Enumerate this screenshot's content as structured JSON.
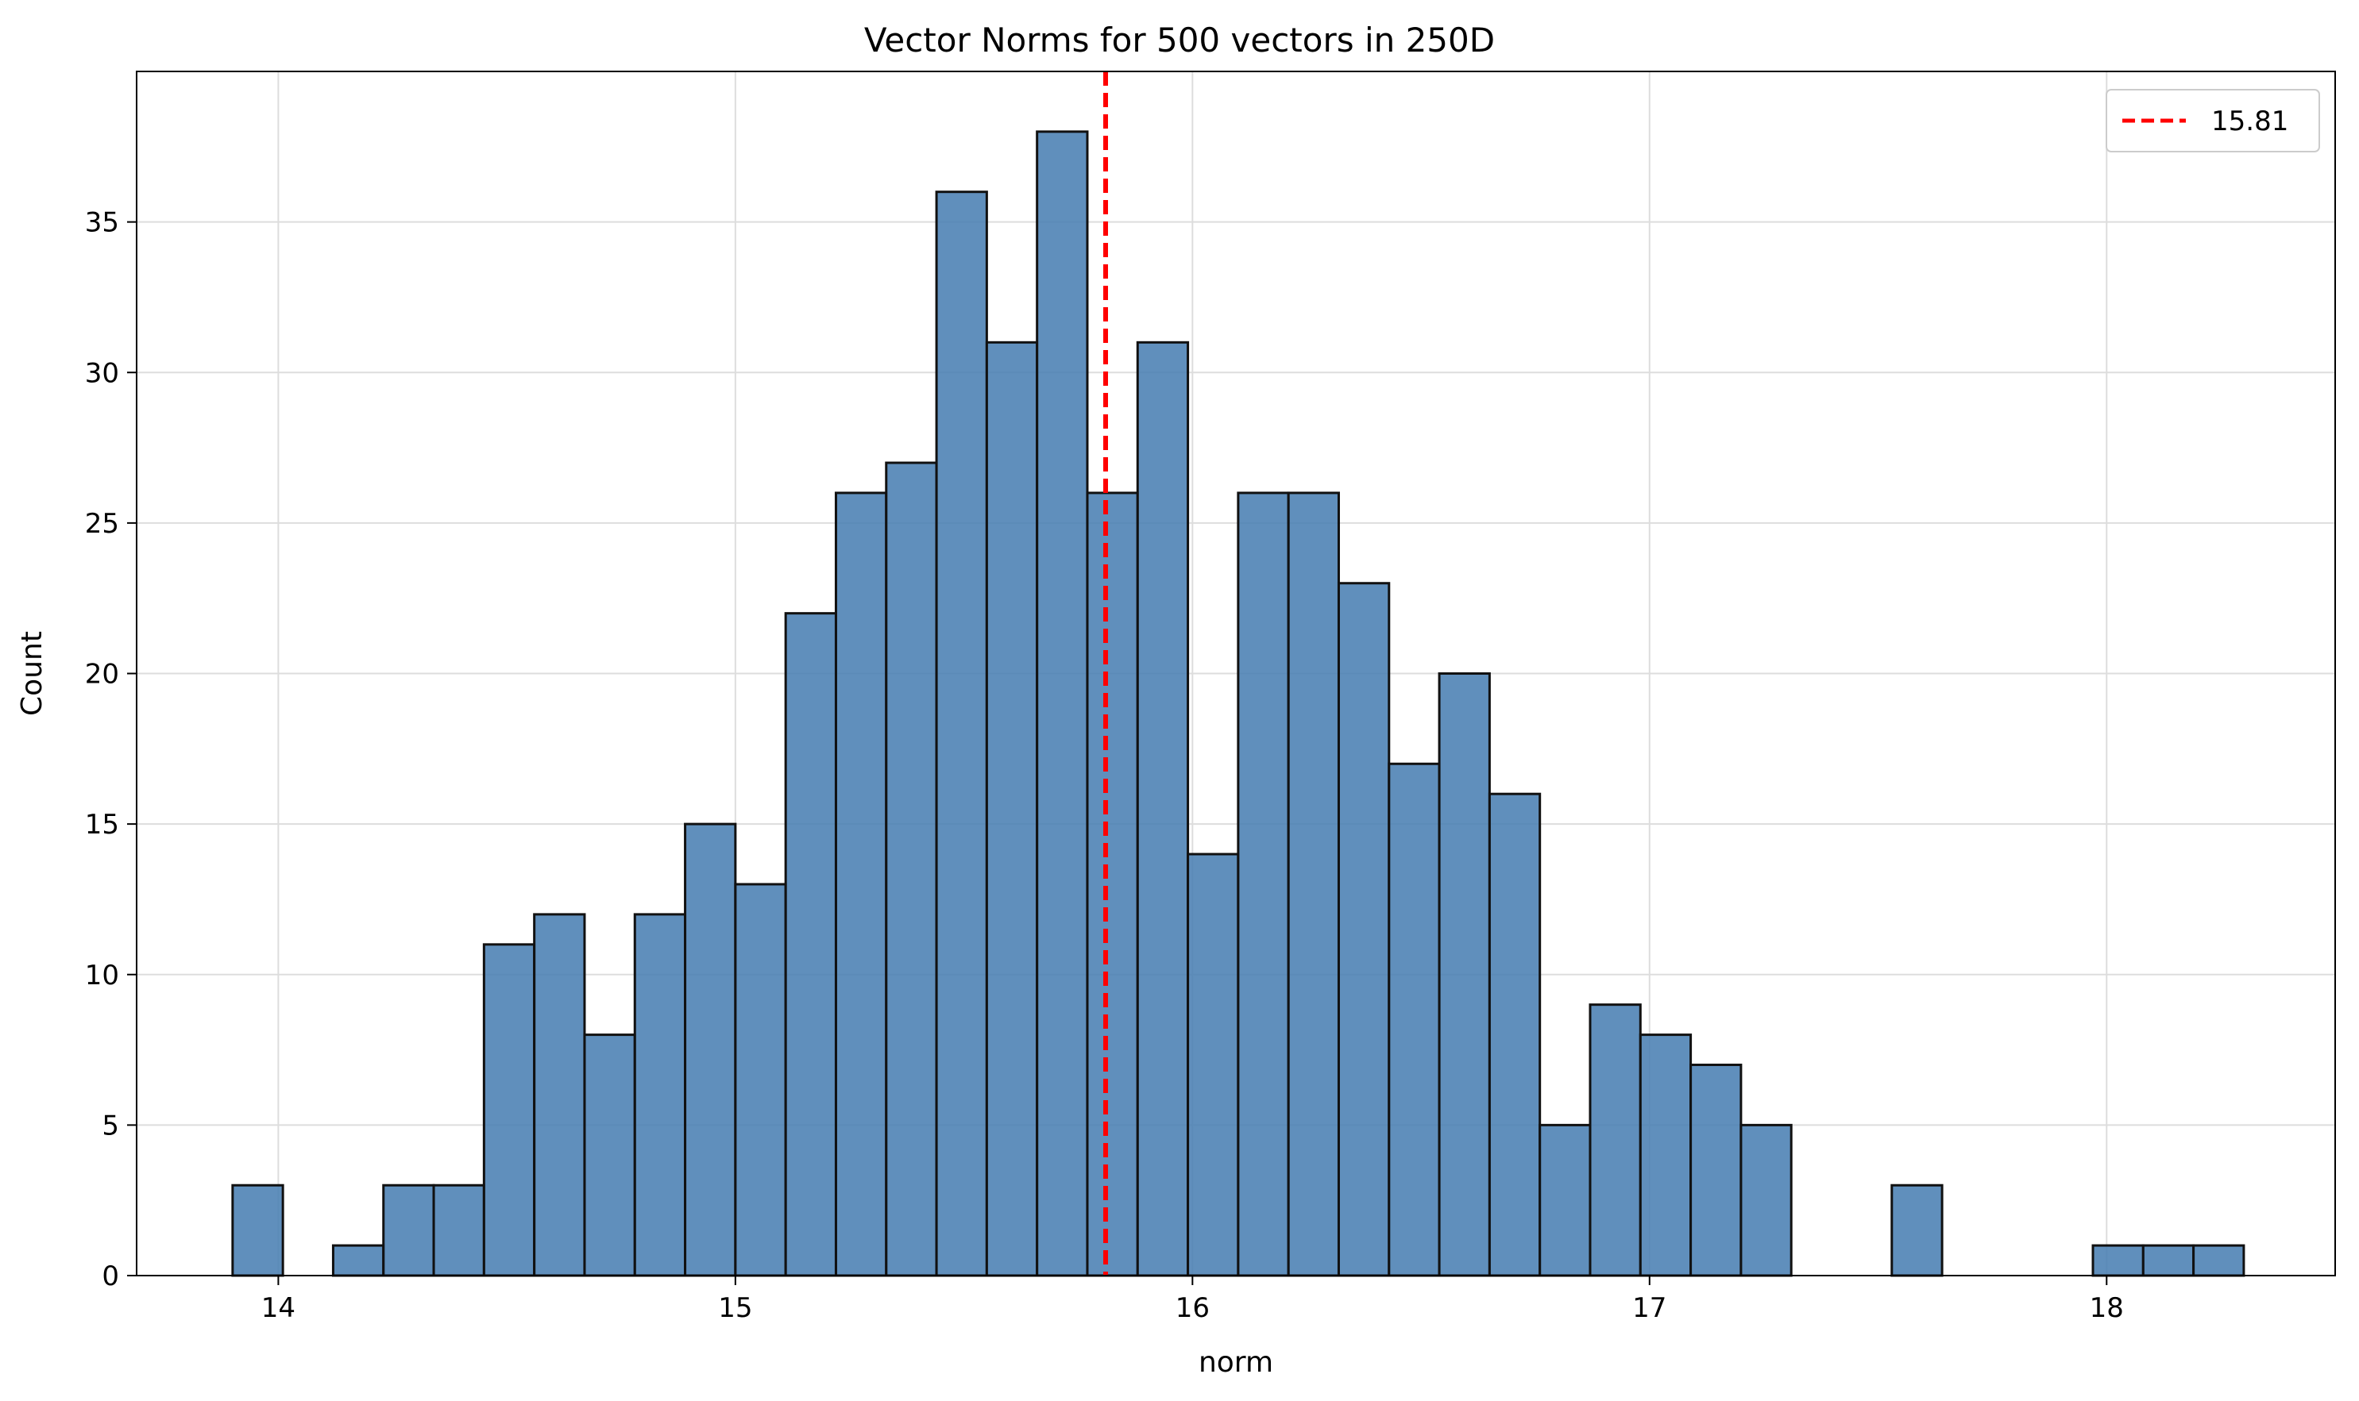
{
  "chart_data": {
    "type": "bar",
    "title": "Vector Norms for 500 vectors in 250D",
    "xlabel": "norm",
    "ylabel": "Count",
    "xlim": [
      13.69,
      18.5
    ],
    "ylim": [
      0,
      40
    ],
    "xticks": [
      14,
      15,
      16,
      17,
      18
    ],
    "yticks": [
      0,
      5,
      10,
      15,
      20,
      25,
      30,
      35
    ],
    "grid": true,
    "bar_color": "#4a7fb3",
    "bar_edge_color": "#111111",
    "bins": {
      "start": 13.9,
      "width": 0.11,
      "counts": [
        3,
        0,
        1,
        3,
        3,
        11,
        12,
        8,
        12,
        15,
        13,
        22,
        26,
        27,
        36,
        31,
        38,
        26,
        31,
        14,
        26,
        26,
        23,
        17,
        20,
        16,
        5,
        9,
        8,
        7,
        5,
        0,
        0,
        3,
        0,
        0,
        0,
        1,
        1,
        1
      ]
    },
    "reference_line": {
      "x": 15.81,
      "color": "#ff0000",
      "style": "dashed",
      "label": "15.81"
    },
    "legend": {
      "position": "top-right",
      "entries": [
        "15.81"
      ]
    }
  }
}
